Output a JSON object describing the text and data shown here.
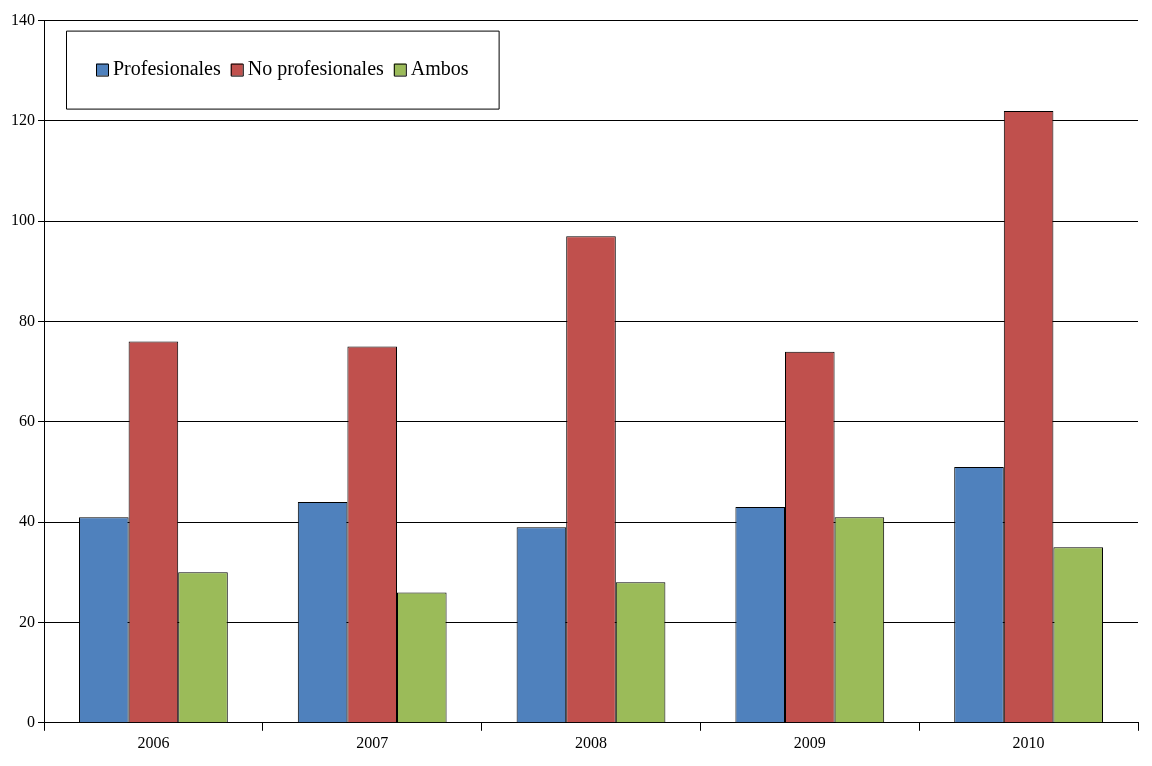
{
  "chart_data": {
    "type": "bar",
    "categories": [
      "2006",
      "2007",
      "2008",
      "2009",
      "2010"
    ],
    "series": [
      {
        "name": "Profesionales",
        "color": "#4f81bd",
        "values": [
          41,
          44,
          39,
          43,
          51
        ]
      },
      {
        "name": "No profesionales",
        "color": "#c0504d",
        "values": [
          76,
          75,
          97,
          74,
          122
        ]
      },
      {
        "name": "Ambos",
        "color": "#9bbb59",
        "values": [
          30,
          26,
          28,
          41,
          35
        ]
      }
    ],
    "ylim": [
      0,
      140
    ],
    "yticks": [
      0,
      20,
      40,
      60,
      80,
      100,
      120,
      140
    ],
    "grid": "y",
    "legend": "top left"
  }
}
